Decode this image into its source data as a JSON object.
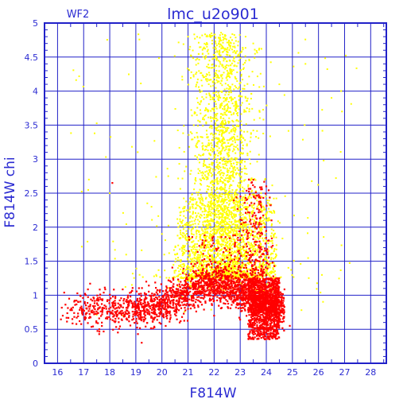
{
  "chart_data": {
    "type": "scatter",
    "title": "lmc_u2o901",
    "corner_label": "WF2",
    "xlabel": "F814W",
    "ylabel": "F814W  chi",
    "xlim": [
      15.5,
      28.6
    ],
    "ylim": [
      0,
      5
    ],
    "x_ticks": [
      "16",
      "17",
      "18",
      "19",
      "20",
      "21",
      "22",
      "23",
      "24",
      "25",
      "26",
      "27",
      "28"
    ],
    "y_ticks": [
      "0",
      "0.5",
      "1",
      "1.5",
      "2",
      "2.5",
      "3",
      "3.5",
      "4",
      "4.5",
      "5"
    ],
    "grid": true,
    "colors": {
      "frame": "#2121c8",
      "text": "#2b2bd2",
      "selected": "#ffff00",
      "rejected": "#ff0000"
    },
    "series": [
      {
        "color": "#ffff00",
        "description_hidden": false,
        "values_approx": [
          [
            22.4,
            4.6
          ],
          [
            22.1,
            4.2
          ],
          [
            22.6,
            3.9
          ],
          [
            22.0,
            3.6
          ],
          [
            22.8,
            3.4
          ],
          [
            21.8,
            3.2
          ],
          [
            22.3,
            3.0
          ],
          [
            23.0,
            2.9
          ],
          [
            21.5,
            2.8
          ],
          [
            22.6,
            2.6
          ],
          [
            21.2,
            2.4
          ],
          [
            23.2,
            2.3
          ],
          [
            22.0,
            2.2
          ],
          [
            20.8,
            2.1
          ],
          [
            22.5,
            2.0
          ],
          [
            23.4,
            1.9
          ],
          [
            21.4,
            1.8
          ],
          [
            22.9,
            1.7
          ],
          [
            20.5,
            1.6
          ],
          [
            22.2,
            1.5
          ],
          [
            23.6,
            1.5
          ],
          [
            21.7,
            1.4
          ],
          [
            22.7,
            1.35
          ],
          [
            24.0,
            1.8
          ],
          [
            23.8,
            2.5
          ],
          [
            20.0,
            1.9
          ],
          [
            19.6,
            2.3
          ],
          [
            24.5,
            4.1
          ],
          [
            25.5,
            4.4
          ],
          [
            26.5,
            3.9
          ],
          [
            17.2,
            2.7
          ],
          [
            18.0,
            2.5
          ],
          [
            26.9,
            3.7
          ],
          [
            21.0,
            4.8
          ],
          [
            23.5,
            4.7
          ]
        ]
      },
      {
        "color": "#ff0000",
        "values_approx": [
          [
            16.2,
            0.7
          ],
          [
            16.8,
            0.9
          ],
          [
            17.3,
            0.75
          ],
          [
            17.8,
            0.85
          ],
          [
            18.2,
            0.8
          ],
          [
            18.7,
            0.9
          ],
          [
            19.1,
            0.85
          ],
          [
            19.6,
            0.95
          ],
          [
            20.0,
            0.9
          ],
          [
            20.4,
            1.0
          ],
          [
            20.9,
            1.05
          ],
          [
            21.3,
            1.1
          ],
          [
            21.8,
            1.15
          ],
          [
            22.2,
            1.1
          ],
          [
            22.7,
            1.05
          ],
          [
            23.1,
            1.0
          ],
          [
            23.5,
            0.9
          ],
          [
            23.8,
            0.8
          ],
          [
            24.1,
            0.7
          ],
          [
            24.3,
            0.6
          ],
          [
            24.0,
            0.5
          ],
          [
            23.7,
            0.45
          ],
          [
            24.4,
            1.2
          ],
          [
            23.9,
            1.6
          ],
          [
            24.2,
            2.1
          ],
          [
            24.0,
            2.6
          ],
          [
            18.1,
            2.65
          ],
          [
            19.4,
            1.2
          ],
          [
            24.9,
            0.55
          ],
          [
            22.0,
            0.7
          ],
          [
            23.0,
            1.3
          ],
          [
            21.0,
            0.8
          ],
          [
            20.2,
            0.7
          ],
          [
            17.6,
            0.5
          ]
        ]
      }
    ]
  }
}
